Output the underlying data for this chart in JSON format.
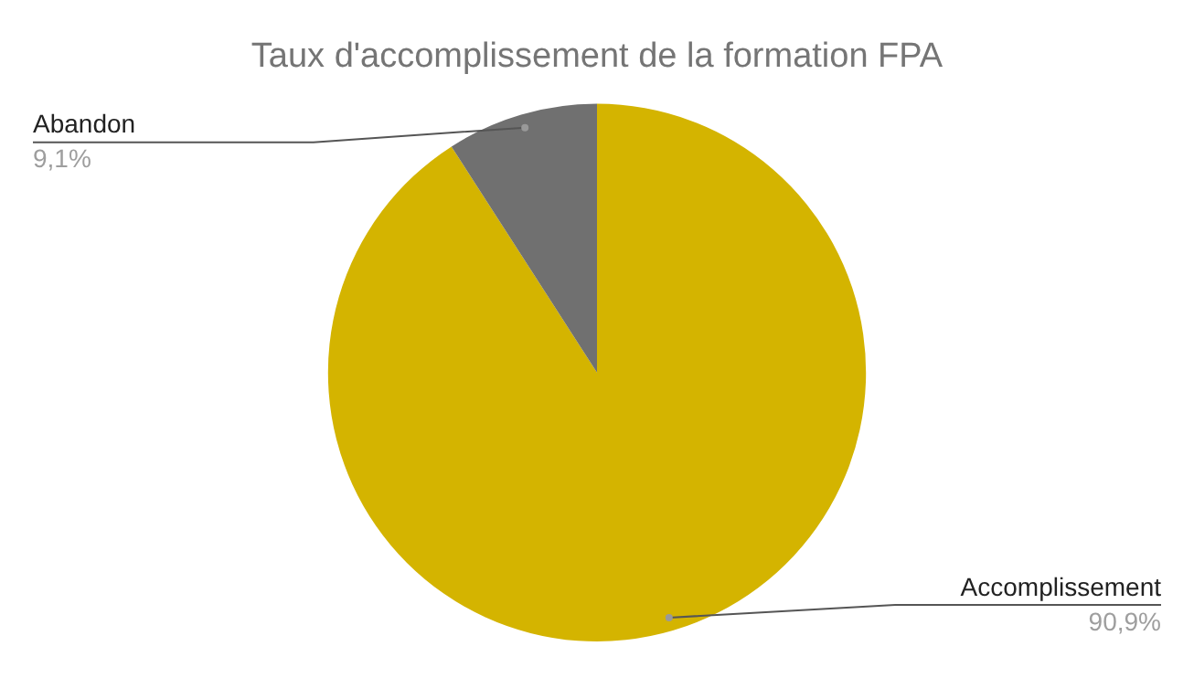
{
  "chart_data": {
    "type": "pie",
    "title": "Taux d'accomplissement de la formation FPA",
    "categories": [
      "Accomplissement",
      "Abandon"
    ],
    "values": [
      90.9,
      9.1
    ],
    "colors": [
      "#d4b400",
      "#707070"
    ],
    "value_labels": [
      "90,9%",
      "9,1%"
    ],
    "legend": false
  }
}
